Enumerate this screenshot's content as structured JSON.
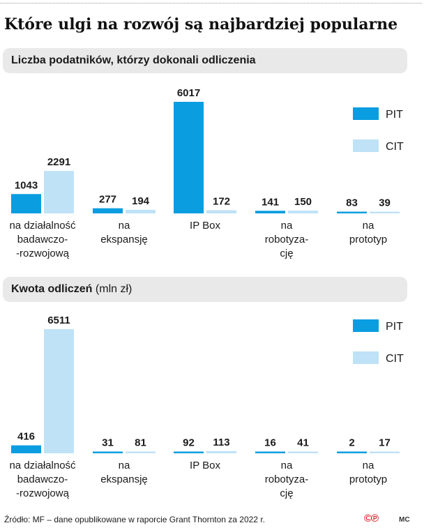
{
  "title": "Które ulgi na rozwój są najbardziej popularne",
  "colors": {
    "pit": "#0a9de0",
    "cit": "#bfe2f6",
    "section_bg": "#e9e9e9"
  },
  "chart_data": [
    {
      "type": "bar",
      "title": "Liczba podatników, którzy dokonali odliczenia",
      "unit": "",
      "categories": [
        [
          "na działalność",
          "badawczo-",
          "-rozwojową"
        ],
        [
          "na",
          "ekspansję"
        ],
        [
          "IP Box"
        ],
        [
          "na",
          "robotyza-",
          "cję"
        ],
        [
          "na",
          "prototyp"
        ]
      ],
      "series": [
        {
          "name": "PIT",
          "values": [
            1043,
            277,
            6017,
            141,
            83
          ]
        },
        {
          "name": "CIT",
          "values": [
            2291,
            194,
            172,
            150,
            39
          ]
        }
      ],
      "grid": false,
      "legend": "top-right"
    },
    {
      "type": "bar",
      "title": "Kwota odliczeń",
      "unit": "(mln zł)",
      "categories": [
        [
          "na działalność",
          "badawczo-",
          "-rozwojową"
        ],
        [
          "na",
          "ekspansję"
        ],
        [
          "IP Box"
        ],
        [
          "na",
          "robotyza-",
          "cję"
        ],
        [
          "na",
          "prototyp"
        ]
      ],
      "series": [
        {
          "name": "PIT",
          "values": [
            416,
            31,
            92,
            16,
            2
          ]
        },
        {
          "name": "CIT",
          "values": [
            6511,
            81,
            113,
            41,
            17
          ]
        }
      ],
      "grid": false,
      "legend": "top-right"
    }
  ],
  "source": "Źródło: MF – dane  opublikowane w raporcie Grant Thornton za 2022 r.",
  "logo": "©℗",
  "author": "MC"
}
